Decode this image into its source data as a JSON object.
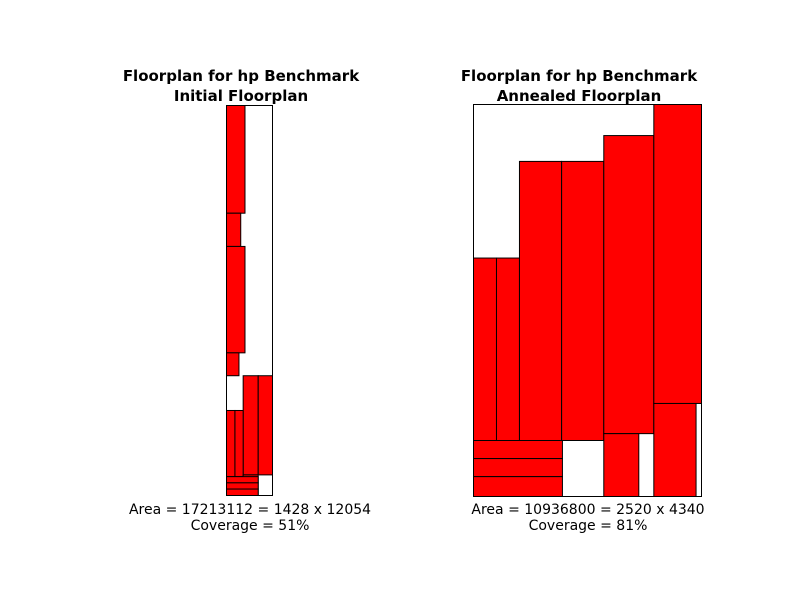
{
  "colors": {
    "block_fill": "#ff0000",
    "stroke": "#000000",
    "background": "#ffffff"
  },
  "panels": [
    {
      "title_line1": "Floorplan for hp Benchmark",
      "title_line2": "Initial Floorplan",
      "area_text": "Area = 17213112 = 1428 x 12054",
      "coverage_text": "Coverage = 51%",
      "chip": {
        "width": 1428,
        "height": 12054
      },
      "blocks": [
        [
          0,
          0,
          574,
          3329
        ],
        [
          0,
          3329,
          442,
          1027
        ],
        [
          0,
          4356,
          574,
          3289
        ],
        [
          0,
          7645,
          387,
          707
        ],
        [
          517,
          8352,
          467,
          3065
        ],
        [
          984,
          8352,
          444,
          3065
        ],
        [
          0,
          9426,
          262,
          2045
        ],
        [
          262,
          9426,
          255,
          2045
        ],
        [
          517,
          11417,
          467,
          637
        ],
        [
          0,
          11471,
          984,
          192
        ],
        [
          0,
          11663,
          984,
          192
        ],
        [
          0,
          11855,
          984,
          199
        ]
      ]
    },
    {
      "title_line1": "Floorplan for hp Benchmark",
      "title_line2": "Annealed Floorplan",
      "area_text": "Area = 10936800 = 2520 x 4340",
      "coverage_text": "Coverage = 81%",
      "chip": {
        "width": 2520,
        "height": 4340
      },
      "blocks": [
        [
          0,
          1700,
          254,
          2020
        ],
        [
          254,
          1700,
          254,
          2020
        ],
        [
          508,
          630,
          466,
          3090
        ],
        [
          974,
          630,
          466,
          3090
        ],
        [
          1440,
          344,
          553,
          3300
        ],
        [
          1993,
          0,
          527,
          3310
        ],
        [
          0,
          3720,
          983,
          200
        ],
        [
          0,
          3920,
          983,
          200
        ],
        [
          0,
          4120,
          983,
          220
        ],
        [
          1440,
          3644,
          387,
          696
        ],
        [
          1993,
          3310,
          467,
          1030
        ]
      ]
    }
  ]
}
